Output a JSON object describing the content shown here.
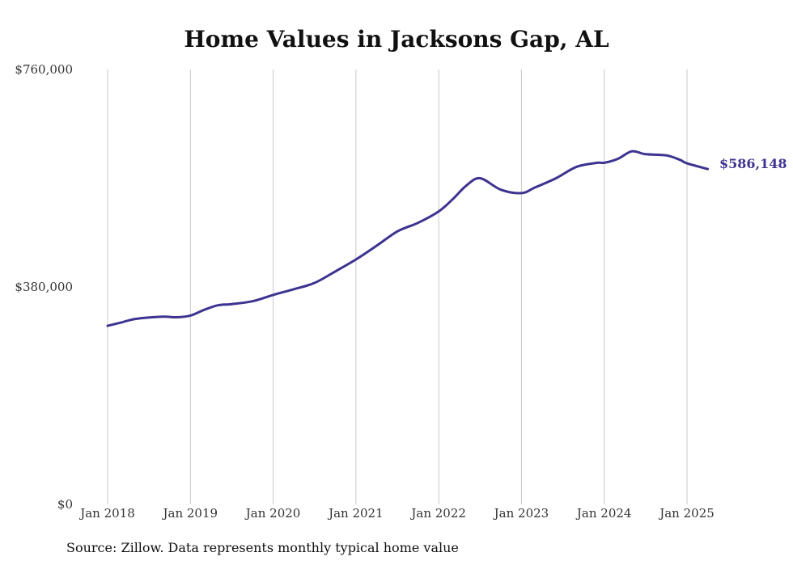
{
  "chart_data": {
    "type": "line",
    "title": "Home Values in Jacksons Gap, AL",
    "source": "Source: Zillow. Data represents monthly typical home value",
    "y_ticks": [
      {
        "value": 0,
        "label": "$0"
      },
      {
        "value": 380000,
        "label": "$380,000"
      },
      {
        "value": 760000,
        "label": "$760,000"
      }
    ],
    "x_ticks": [
      {
        "value": 2018.0,
        "label": "Jan 2018"
      },
      {
        "value": 2019.0,
        "label": "Jan 2019"
      },
      {
        "value": 2020.0,
        "label": "Jan 2020"
      },
      {
        "value": 2021.0,
        "label": "Jan 2021"
      },
      {
        "value": 2022.0,
        "label": "Jan 2022"
      },
      {
        "value": 2023.0,
        "label": "Jan 2023"
      },
      {
        "value": 2024.0,
        "label": "Jan 2024"
      },
      {
        "value": 2025.0,
        "label": "Jan 2025"
      }
    ],
    "ylim": [
      0,
      760000
    ],
    "xlim": [
      2018.0,
      2025.25
    ],
    "grid": "vertical",
    "line_color": "#3d3390",
    "end_label": "$586,148",
    "series": [
      {
        "x": [
          2018.0,
          2018.167,
          2018.333,
          2018.667,
          2018.833,
          2019.0,
          2019.167,
          2019.333,
          2019.5,
          2019.75,
          2020.0,
          2020.25,
          2020.5,
          2020.75,
          2021.0,
          2021.25,
          2021.5,
          2021.75,
          2022.0,
          2022.167,
          2022.333,
          2022.5,
          2022.75,
          2023.0,
          2023.167,
          2023.417,
          2023.667,
          2023.917,
          2024.0,
          2024.167,
          2024.333,
          2024.5,
          2024.75,
          2024.917,
          2025.0,
          2025.25
        ],
        "y": [
          312000,
          318000,
          324000,
          328000,
          327000,
          330000,
          340000,
          348000,
          350000,
          355000,
          366000,
          376000,
          387000,
          407000,
          428000,
          452000,
          477000,
          492000,
          512000,
          533000,
          557000,
          570000,
          550000,
          544000,
          554000,
          570000,
          590000,
          597000,
          597000,
          604000,
          617000,
          612000,
          610000,
          602000,
          596000,
          586148
        ]
      }
    ]
  }
}
